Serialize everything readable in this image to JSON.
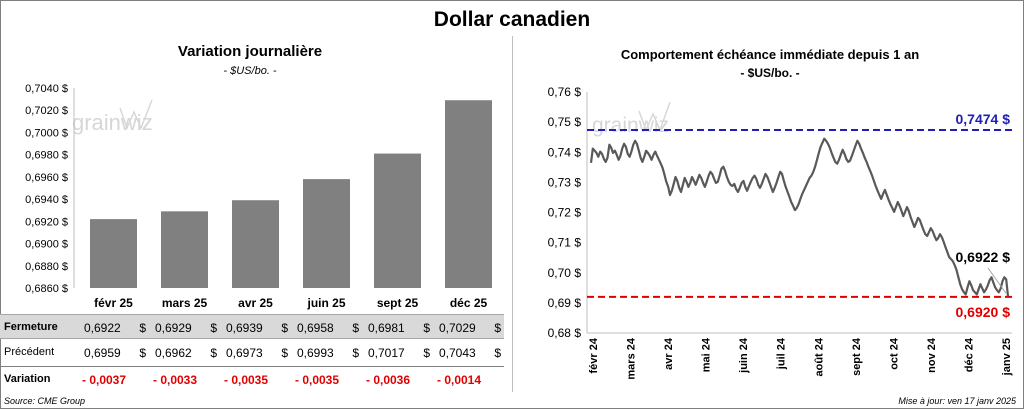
{
  "title": "Dollar canadien",
  "left": {
    "title": "Variation  journalière",
    "subtitle": "- $US/bo. -"
  },
  "right": {
    "title": "Comportement échéance immédiate depuis 1 an",
    "subtitle": "- $US/bo. -"
  },
  "watermark": "grainwiz",
  "table": {
    "rows": [
      {
        "label": "Fermeture",
        "values": [
          "0,6922",
          "0,6929",
          "0,6939",
          "0,6958",
          "0,6981",
          "0,7029"
        ],
        "currency": "$"
      },
      {
        "label": "Précédent",
        "values": [
          "0,6959",
          "0,6962",
          "0,6973",
          "0,6993",
          "0,7017",
          "0,7043"
        ],
        "currency": "$"
      },
      {
        "label": "Variation",
        "values": [
          "- 0,0037",
          "- 0,0033",
          "- 0,0035",
          "- 0,0035",
          "- 0,0036",
          "- 0,0014"
        ],
        "currency": ""
      }
    ]
  },
  "source": "Source: CME Group",
  "updated": "Mise à jour: ven 17 janv 2025",
  "colors": {
    "bar": "#808080",
    "line": "#595959",
    "upper_line": "#1f1fb4",
    "lower_line": "#e00000",
    "negative": "#e00000"
  },
  "chart_data": [
    {
      "type": "bar",
      "title": "Variation  journalière",
      "subtitle": "- $US/bo. -",
      "categories": [
        "févr 25",
        "mars 25",
        "avr 25",
        "juin 25",
        "sept 25",
        "déc 25"
      ],
      "values": [
        0.6922,
        0.6929,
        0.6939,
        0.6958,
        0.6981,
        0.7029
      ],
      "ylim": [
        0.686,
        0.704
      ],
      "yticks": [
        "0,6860 $",
        "0,6880 $",
        "0,6900 $",
        "0,6920 $",
        "0,6940 $",
        "0,6960 $",
        "0,6980 $",
        "0,7000 $",
        "0,7020 $",
        "0,7040 $"
      ],
      "grid": false
    },
    {
      "type": "line",
      "title": "Comportement échéance immédiate depuis 1 an",
      "subtitle": "- $US/bo. -",
      "x_labels": [
        "févr 24",
        "mars 24",
        "avr 24",
        "mai 24",
        "juin 24",
        "juil 24",
        "août 24",
        "sept 24",
        "oct 24",
        "nov 24",
        "déc 24",
        "janv 25"
      ],
      "ylim": [
        0.68,
        0.76
      ],
      "yticks": [
        "0,68 $",
        "0,69 $",
        "0,70 $",
        "0,71 $",
        "0,72 $",
        "0,73 $",
        "0,74 $",
        "0,75 $",
        "0,76 $"
      ],
      "series": [
        {
          "values": [
            0.7365,
            0.7412,
            0.7405,
            0.7398,
            0.7385,
            0.7402,
            0.7395,
            0.7378,
            0.7368,
            0.7382,
            0.7425,
            0.7415,
            0.7398,
            0.7405,
            0.7392,
            0.7375,
            0.7388,
            0.7412,
            0.7428,
            0.7418,
            0.7395,
            0.7385,
            0.7402,
            0.7425,
            0.7438,
            0.7428,
            0.7405,
            0.7382,
            0.7368,
            0.7385,
            0.7405,
            0.7398,
            0.7388,
            0.7375,
            0.7392,
            0.7402,
            0.7388,
            0.7375,
            0.7362,
            0.7348,
            0.7325,
            0.7302,
            0.7285,
            0.7258,
            0.7272,
            0.7295,
            0.7318,
            0.7305,
            0.7282,
            0.7268,
            0.7292,
            0.7315,
            0.7302,
            0.7285,
            0.7298,
            0.7318,
            0.7305,
            0.7292,
            0.7308,
            0.7325,
            0.7315,
            0.7298,
            0.7285,
            0.7302,
            0.7322,
            0.7335,
            0.7328,
            0.7312,
            0.7298,
            0.7302,
            0.7322,
            0.7345,
            0.7352,
            0.7338,
            0.7318,
            0.7302,
            0.7292,
            0.7288,
            0.7295,
            0.7278,
            0.7268,
            0.7282,
            0.7298,
            0.7305,
            0.7285,
            0.7272,
            0.7288,
            0.7302,
            0.7315,
            0.7322,
            0.7312,
            0.7292,
            0.7282,
            0.7295,
            0.7312,
            0.7328,
            0.7318,
            0.7302,
            0.7285,
            0.7268,
            0.7282,
            0.7298,
            0.7318,
            0.7335,
            0.7328,
            0.7305,
            0.7285,
            0.7268,
            0.7252,
            0.7235,
            0.7222,
            0.7208,
            0.7215,
            0.7228,
            0.7245,
            0.7262,
            0.7275,
            0.7288,
            0.7302,
            0.7315,
            0.7322,
            0.7335,
            0.7352,
            0.7375,
            0.7398,
            0.7418,
            0.7432,
            0.7445,
            0.7438,
            0.7428,
            0.7415,
            0.7398,
            0.7382,
            0.7368,
            0.7362,
            0.7375,
            0.7392,
            0.7408,
            0.7395,
            0.7378,
            0.7368,
            0.7372,
            0.7388,
            0.7405,
            0.7422,
            0.7438,
            0.7428,
            0.7412,
            0.7398,
            0.7382,
            0.7368,
            0.7352,
            0.7338,
            0.7322,
            0.7305,
            0.7288,
            0.7272,
            0.7258,
            0.7245,
            0.7262,
            0.7275,
            0.7258,
            0.7242,
            0.7228,
            0.7215,
            0.7202,
            0.7218,
            0.7235,
            0.7222,
            0.7205,
            0.7188,
            0.7202,
            0.7218,
            0.7205,
            0.7185,
            0.7168,
            0.7152,
            0.7165,
            0.7182,
            0.7175,
            0.7158,
            0.7142,
            0.7128,
            0.7122,
            0.7135,
            0.7148,
            0.7138,
            0.7122,
            0.7108,
            0.7115,
            0.7128,
            0.7118,
            0.7102,
            0.7085,
            0.7068,
            0.7052,
            0.7045,
            0.7038,
            0.7025,
            0.7008,
            0.6985,
            0.6962,
            0.6945,
            0.6935,
            0.6928,
            0.6952,
            0.6972,
            0.6958,
            0.6942,
            0.6935,
            0.6928,
            0.6945,
            0.6962,
            0.6948,
            0.6935,
            0.6945,
            0.6958,
            0.6975,
            0.6985,
            0.6968,
            0.6952,
            0.6942,
            0.6935,
            0.6948,
            0.6972,
            0.6985,
            0.6978,
            0.6922
          ]
        }
      ],
      "ref_lines": [
        {
          "value": 0.7474,
          "label": "0,7474 $"
        },
        {
          "value": 0.692,
          "label": "0,6920 $"
        }
      ],
      "last_value_label": "0,6922 $",
      "grid": false
    }
  ]
}
